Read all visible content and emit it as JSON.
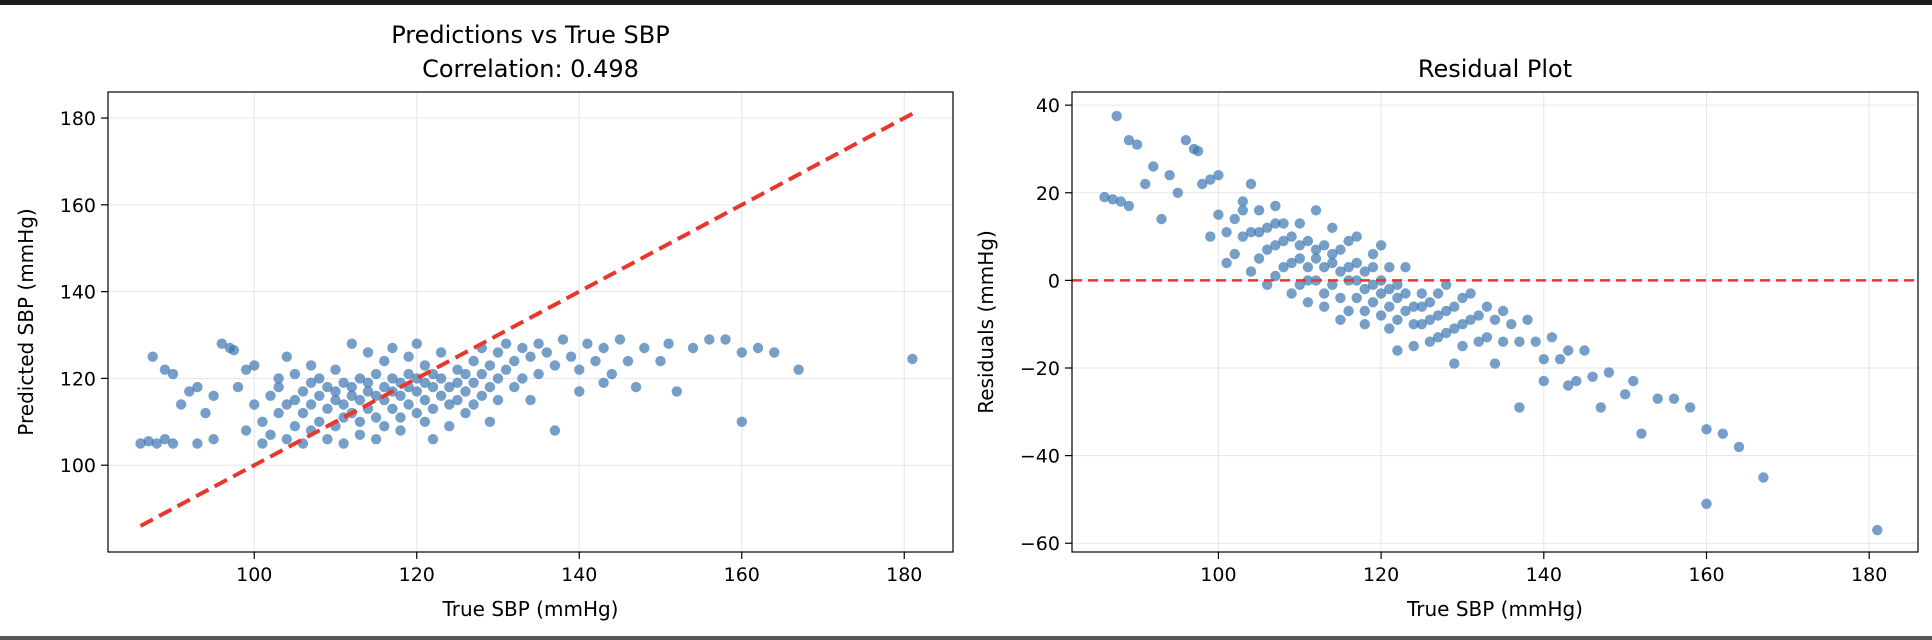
{
  "chart_data": [
    {
      "type": "scatter",
      "title": "Predictions vs True SBP",
      "subtitle": "Correlation: 0.498",
      "xlabel": "True SBP (mmHg)",
      "ylabel": "Predicted SBP (mmHg)",
      "xlim": [
        82,
        186
      ],
      "ylim": [
        80,
        186
      ],
      "xticks": [
        100,
        120,
        140,
        160,
        180
      ],
      "yticks": [
        100,
        120,
        140,
        160,
        180
      ],
      "grid": true,
      "point_color": "#3b76b0",
      "reference_line": {
        "style": "dashed",
        "color": "#e8372c",
        "points": [
          [
            86,
            86
          ],
          [
            181,
            181
          ]
        ]
      },
      "points": [
        [
          86,
          105
        ],
        [
          87,
          105.5
        ],
        [
          88,
          105
        ],
        [
          89,
          106
        ],
        [
          90,
          105
        ],
        [
          87.5,
          125
        ],
        [
          89,
          122
        ],
        [
          90,
          121
        ],
        [
          91,
          114
        ],
        [
          92,
          117
        ],
        [
          93,
          105
        ],
        [
          93,
          118
        ],
        [
          94,
          112
        ],
        [
          95,
          116
        ],
        [
          95,
          106
        ],
        [
          96,
          128
        ],
        [
          97,
          127
        ],
        [
          97.5,
          126.5
        ],
        [
          98,
          118
        ],
        [
          99,
          122
        ],
        [
          99,
          108
        ],
        [
          100,
          123
        ],
        [
          100,
          114
        ],
        [
          101,
          110
        ],
        [
          101,
          105
        ],
        [
          102,
          116
        ],
        [
          102,
          107
        ],
        [
          103,
          118
        ],
        [
          103,
          112
        ],
        [
          103,
          120
        ],
        [
          104,
          114
        ],
        [
          104,
          106
        ],
        [
          104,
          125
        ],
        [
          105,
          115
        ],
        [
          105,
          109
        ],
        [
          105,
          121
        ],
        [
          106,
          117
        ],
        [
          106,
          112
        ],
        [
          106,
          105
        ],
        [
          107,
          119
        ],
        [
          107,
          114
        ],
        [
          107,
          108
        ],
        [
          107,
          123
        ],
        [
          108,
          116
        ],
        [
          108,
          110
        ],
        [
          108,
          120
        ],
        [
          109,
          118
        ],
        [
          109,
          113
        ],
        [
          109,
          106
        ],
        [
          110,
          117
        ],
        [
          110,
          115
        ],
        [
          110,
          109
        ],
        [
          110,
          122
        ],
        [
          111,
          119
        ],
        [
          111,
          114
        ],
        [
          111,
          111
        ],
        [
          111,
          105
        ],
        [
          112,
          118
        ],
        [
          112,
          116
        ],
        [
          112,
          112
        ],
        [
          112,
          128
        ],
        [
          113,
          120
        ],
        [
          113,
          115
        ],
        [
          113,
          110
        ],
        [
          113,
          107
        ],
        [
          114,
          119
        ],
        [
          114,
          117
        ],
        [
          114,
          113
        ],
        [
          114,
          126
        ],
        [
          115,
          121
        ],
        [
          115,
          116
        ],
        [
          115,
          111
        ],
        [
          115,
          106
        ],
        [
          116,
          118
        ],
        [
          116,
          115
        ],
        [
          116,
          109
        ],
        [
          116,
          124
        ],
        [
          117,
          120
        ],
        [
          117,
          117
        ],
        [
          117,
          113
        ],
        [
          117,
          127
        ],
        [
          118,
          119
        ],
        [
          118,
          116
        ],
        [
          118,
          111
        ],
        [
          118,
          108
        ],
        [
          119,
          121
        ],
        [
          119,
          118
        ],
        [
          119,
          114
        ],
        [
          119,
          125
        ],
        [
          120,
          120
        ],
        [
          120,
          117
        ],
        [
          120,
          112
        ],
        [
          120,
          128
        ],
        [
          121,
          119
        ],
        [
          121,
          115
        ],
        [
          121,
          110
        ],
        [
          121,
          123
        ],
        [
          122,
          121
        ],
        [
          122,
          118
        ],
        [
          122,
          113
        ],
        [
          122,
          106
        ],
        [
          123,
          120
        ],
        [
          123,
          116
        ],
        [
          123,
          126
        ],
        [
          124,
          118
        ],
        [
          124,
          114
        ],
        [
          124,
          109
        ],
        [
          125,
          122
        ],
        [
          125,
          119
        ],
        [
          125,
          115
        ],
        [
          126,
          121
        ],
        [
          126,
          117
        ],
        [
          126,
          112
        ],
        [
          127,
          124
        ],
        [
          127,
          119
        ],
        [
          127,
          114
        ],
        [
          128,
          127
        ],
        [
          128,
          121
        ],
        [
          128,
          116
        ],
        [
          129,
          123
        ],
        [
          129,
          118
        ],
        [
          129,
          110
        ],
        [
          130,
          126
        ],
        [
          130,
          120
        ],
        [
          130,
          115
        ],
        [
          131,
          128
        ],
        [
          131,
          122
        ],
        [
          132,
          124
        ],
        [
          132,
          118
        ],
        [
          133,
          127
        ],
        [
          133,
          120
        ],
        [
          134,
          125
        ],
        [
          134,
          115
        ],
        [
          135,
          128
        ],
        [
          135,
          121
        ],
        [
          136,
          126
        ],
        [
          137,
          108
        ],
        [
          137,
          123
        ],
        [
          138,
          129
        ],
        [
          139,
          125
        ],
        [
          140,
          122
        ],
        [
          140,
          117
        ],
        [
          141,
          128
        ],
        [
          142,
          124
        ],
        [
          143,
          127
        ],
        [
          143,
          119
        ],
        [
          144,
          121
        ],
        [
          145,
          129
        ],
        [
          146,
          124
        ],
        [
          147,
          118
        ],
        [
          148,
          127
        ],
        [
          150,
          124
        ],
        [
          151,
          128
        ],
        [
          152,
          117
        ],
        [
          154,
          127
        ],
        [
          156,
          129
        ],
        [
          158,
          129
        ],
        [
          160,
          126
        ],
        [
          160,
          110
        ],
        [
          162,
          127
        ],
        [
          164,
          126
        ],
        [
          167,
          122
        ],
        [
          181,
          124.5
        ]
      ]
    },
    {
      "type": "scatter",
      "title": "Residual Plot",
      "xlabel": "True SBP (mmHg)",
      "ylabel": "Residuals (mmHg)",
      "xlim": [
        82,
        186
      ],
      "ylim": [
        -62,
        43
      ],
      "xticks": [
        100,
        120,
        140,
        160,
        180
      ],
      "yticks": [
        -60,
        -40,
        -20,
        0,
        20,
        40
      ],
      "grid": true,
      "point_color": "#3b76b0",
      "reference_line": {
        "style": "dashed",
        "color": "#e8372c",
        "points": [
          [
            82,
            0
          ],
          [
            186,
            0
          ]
        ]
      },
      "points": [
        [
          86,
          19
        ],
        [
          87,
          18.5
        ],
        [
          88,
          18
        ],
        [
          89,
          17
        ],
        [
          87.5,
          37.5
        ],
        [
          89,
          32
        ],
        [
          90,
          31
        ],
        [
          91,
          22
        ],
        [
          92,
          26
        ],
        [
          93,
          14
        ],
        [
          94,
          24
        ],
        [
          95,
          20
        ],
        [
          96,
          32
        ],
        [
          97,
          30
        ],
        [
          97.5,
          29.5
        ],
        [
          98,
          22
        ],
        [
          99,
          23
        ],
        [
          99,
          10
        ],
        [
          100,
          24
        ],
        [
          100,
          15
        ],
        [
          101,
          11
        ],
        [
          101,
          4
        ],
        [
          102,
          14
        ],
        [
          102,
          6
        ],
        [
          103,
          16
        ],
        [
          103,
          10
        ],
        [
          103,
          18
        ],
        [
          104,
          11
        ],
        [
          104,
          2
        ],
        [
          104,
          22
        ],
        [
          105,
          11
        ],
        [
          105,
          5
        ],
        [
          105,
          16
        ],
        [
          106,
          12
        ],
        [
          106,
          7
        ],
        [
          106,
          -1
        ],
        [
          107,
          13
        ],
        [
          107,
          8
        ],
        [
          107,
          1
        ],
        [
          107,
          17
        ],
        [
          108,
          9
        ],
        [
          108,
          3
        ],
        [
          108,
          13
        ],
        [
          109,
          10
        ],
        [
          109,
          4
        ],
        [
          109,
          -3
        ],
        [
          110,
          8
        ],
        [
          110,
          5
        ],
        [
          110,
          -1
        ],
        [
          110,
          13
        ],
        [
          111,
          9
        ],
        [
          111,
          3
        ],
        [
          111,
          0
        ],
        [
          111,
          -5
        ],
        [
          112,
          7
        ],
        [
          112,
          5
        ],
        [
          112,
          0
        ],
        [
          112,
          16
        ],
        [
          113,
          8
        ],
        [
          113,
          3
        ],
        [
          113,
          -3
        ],
        [
          113,
          -6
        ],
        [
          114,
          6
        ],
        [
          114,
          4
        ],
        [
          114,
          -1
        ],
        [
          114,
          12
        ],
        [
          115,
          7
        ],
        [
          115,
          2
        ],
        [
          115,
          -4
        ],
        [
          115,
          -9
        ],
        [
          116,
          3
        ],
        [
          116,
          0
        ],
        [
          116,
          -7
        ],
        [
          116,
          9
        ],
        [
          117,
          4
        ],
        [
          117,
          0
        ],
        [
          117,
          -4
        ],
        [
          117,
          10
        ],
        [
          118,
          2
        ],
        [
          118,
          -2
        ],
        [
          118,
          -7
        ],
        [
          118,
          -10
        ],
        [
          119,
          3
        ],
        [
          119,
          -1
        ],
        [
          119,
          -5
        ],
        [
          119,
          6
        ],
        [
          120,
          0
        ],
        [
          120,
          -3
        ],
        [
          120,
          -8
        ],
        [
          120,
          8
        ],
        [
          121,
          -2
        ],
        [
          121,
          -6
        ],
        [
          121,
          -11
        ],
        [
          121,
          3
        ],
        [
          122,
          -1
        ],
        [
          122,
          -4
        ],
        [
          122,
          -9
        ],
        [
          122,
          -16
        ],
        [
          123,
          -3
        ],
        [
          123,
          -7
        ],
        [
          123,
          3
        ],
        [
          124,
          -6
        ],
        [
          124,
          -10
        ],
        [
          124,
          -15
        ],
        [
          125,
          -3
        ],
        [
          125,
          -6
        ],
        [
          125,
          -10
        ],
        [
          126,
          -5
        ],
        [
          126,
          -9
        ],
        [
          126,
          -14
        ],
        [
          127,
          -3
        ],
        [
          127,
          -8
        ],
        [
          127,
          -13
        ],
        [
          128,
          -1
        ],
        [
          128,
          -7
        ],
        [
          128,
          -12
        ],
        [
          129,
          -6
        ],
        [
          129,
          -11
        ],
        [
          129,
          -19
        ],
        [
          130,
          -4
        ],
        [
          130,
          -10
        ],
        [
          130,
          -15
        ],
        [
          131,
          -3
        ],
        [
          131,
          -9
        ],
        [
          132,
          -8
        ],
        [
          132,
          -14
        ],
        [
          133,
          -6
        ],
        [
          133,
          -13
        ],
        [
          134,
          -9
        ],
        [
          134,
          -19
        ],
        [
          135,
          -7
        ],
        [
          135,
          -14
        ],
        [
          136,
          -10
        ],
        [
          137,
          -29
        ],
        [
          137,
          -14
        ],
        [
          138,
          -9
        ],
        [
          139,
          -14
        ],
        [
          140,
          -18
        ],
        [
          140,
          -23
        ],
        [
          141,
          -13
        ],
        [
          142,
          -18
        ],
        [
          143,
          -16
        ],
        [
          143,
          -24
        ],
        [
          144,
          -23
        ],
        [
          145,
          -16
        ],
        [
          146,
          -22
        ],
        [
          147,
          -29
        ],
        [
          148,
          -21
        ],
        [
          150,
          -26
        ],
        [
          151,
          -23
        ],
        [
          152,
          -35
        ],
        [
          154,
          -27
        ],
        [
          156,
          -27
        ],
        [
          158,
          -29
        ],
        [
          160,
          -34
        ],
        [
          160,
          -51
        ],
        [
          162,
          -35
        ],
        [
          164,
          -38
        ],
        [
          167,
          -45
        ],
        [
          181,
          -57
        ]
      ]
    }
  ]
}
